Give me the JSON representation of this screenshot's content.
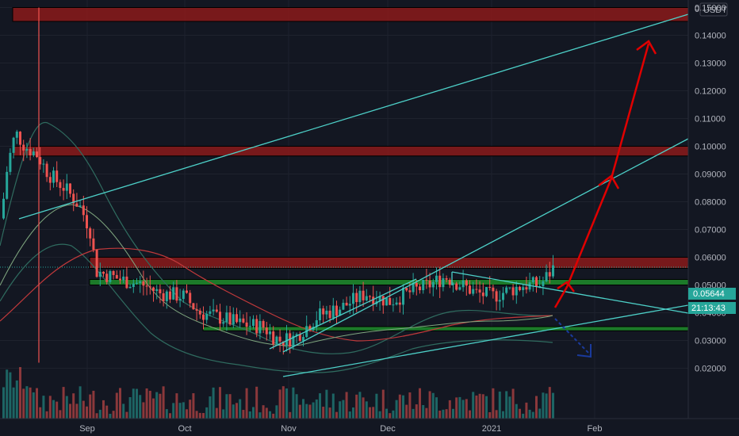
{
  "chart_data": {
    "type": "candlestick",
    "currency": "USDT",
    "price_scale_labels": [
      "0.15000",
      "0.14000",
      "0.13000",
      "0.12000",
      "0.11000",
      "0.10000",
      "0.09000",
      "0.08000",
      "0.07000",
      "0.06000",
      "0.05000",
      "0.04000",
      "0.03000",
      "0.02000"
    ],
    "y_ticks": [
      0.15,
      0.14,
      0.13,
      0.12,
      0.11,
      0.1,
      0.09,
      0.08,
      0.07,
      0.06,
      0.05,
      0.04,
      0.03,
      0.02
    ],
    "time_labels": [
      "Sep",
      "Oct",
      "Nov",
      "Dec",
      "2021",
      "Feb"
    ],
    "ylim": [
      0.015,
      0.175
    ],
    "last_price": "0.05644",
    "countdown": "21:13:43",
    "top_label": "0",
    "zones": [
      {
        "name": "resistance-zone-top",
        "from": 0.145,
        "to": 0.15,
        "color": "#8b1a1a"
      },
      {
        "name": "resistance-zone-mid",
        "from": 0.0965,
        "to": 0.1,
        "color": "#8b1a1a"
      },
      {
        "name": "resistance-zone-low",
        "from": 0.056,
        "to": 0.06,
        "color": "#8b1a1a"
      },
      {
        "name": "support-zone-upper",
        "from": 0.05,
        "to": 0.052,
        "color": "#1e8c2a"
      },
      {
        "name": "support-zone-lower",
        "from": 0.0335,
        "to": 0.035,
        "color": "#1e8c2a"
      }
    ],
    "colors": {
      "up": "#26a69a",
      "down": "#ef5350",
      "trendline": "#4dd0c8",
      "arrow": "#e00000",
      "arrow_down": "#1a3a9c",
      "background": "#131722"
    }
  }
}
